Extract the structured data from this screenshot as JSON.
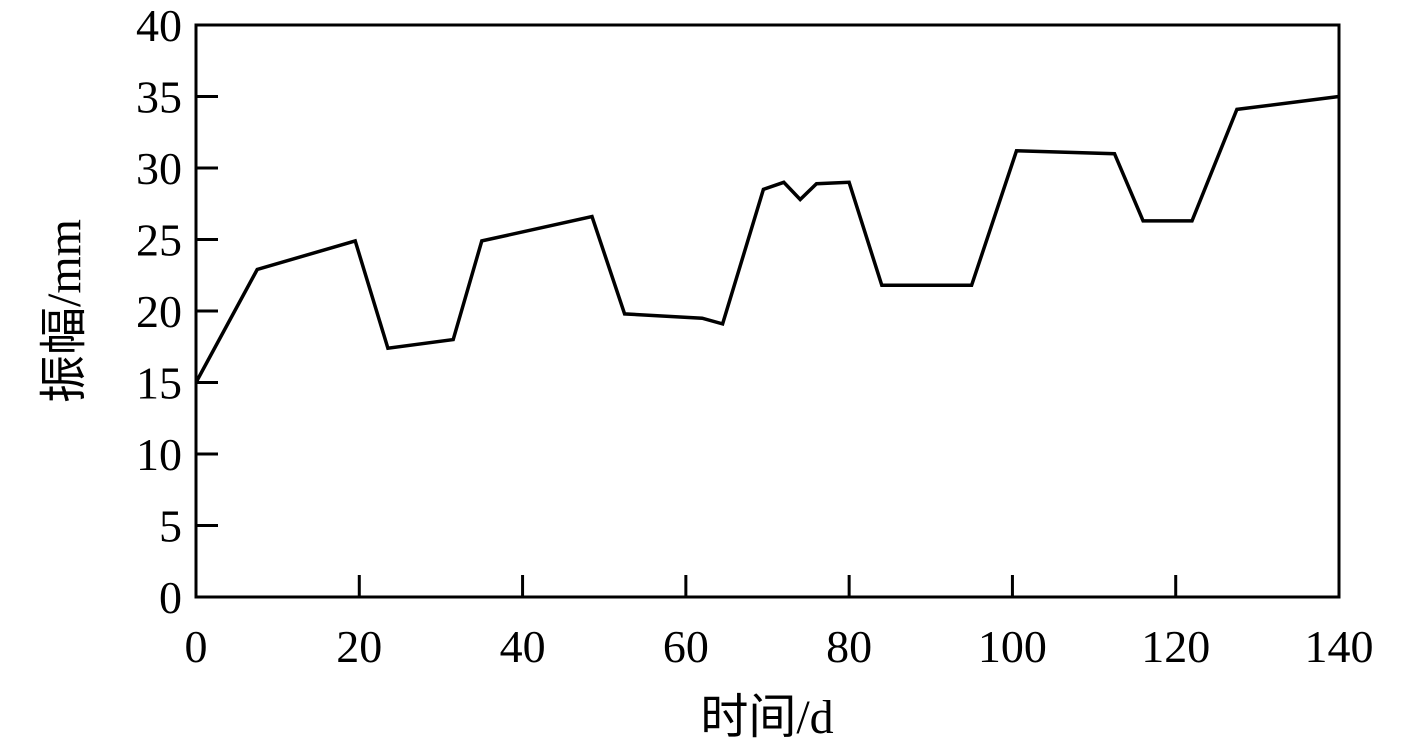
{
  "chart_data": {
    "type": "line",
    "title": "",
    "xlabel": "时间/d",
    "ylabel": "振幅/mm",
    "xlim": [
      0,
      140
    ],
    "ylim": [
      0,
      40
    ],
    "xticks": [
      0,
      20,
      40,
      60,
      80,
      100,
      120,
      140
    ],
    "yticks": [
      0,
      5,
      10,
      15,
      20,
      25,
      30,
      35,
      40
    ],
    "grid": false,
    "legend": "none",
    "line_color": "#000000",
    "series": [
      {
        "x": [
          0,
          7.5,
          19.5,
          23.5,
          31.5,
          35,
          48.5,
          52.5,
          62,
          64.5,
          69.5,
          72,
          74,
          76,
          80,
          84,
          95,
          100.5,
          112.5,
          116,
          122,
          127.5,
          140
        ],
        "y": [
          15,
          22.9,
          24.9,
          17.4,
          18.0,
          24.9,
          26.6,
          19.8,
          19.5,
          19.1,
          28.5,
          29.0,
          27.8,
          28.9,
          29.0,
          21.8,
          21.8,
          31.2,
          31.0,
          26.3,
          26.3,
          34.1,
          35.0
        ]
      }
    ]
  }
}
